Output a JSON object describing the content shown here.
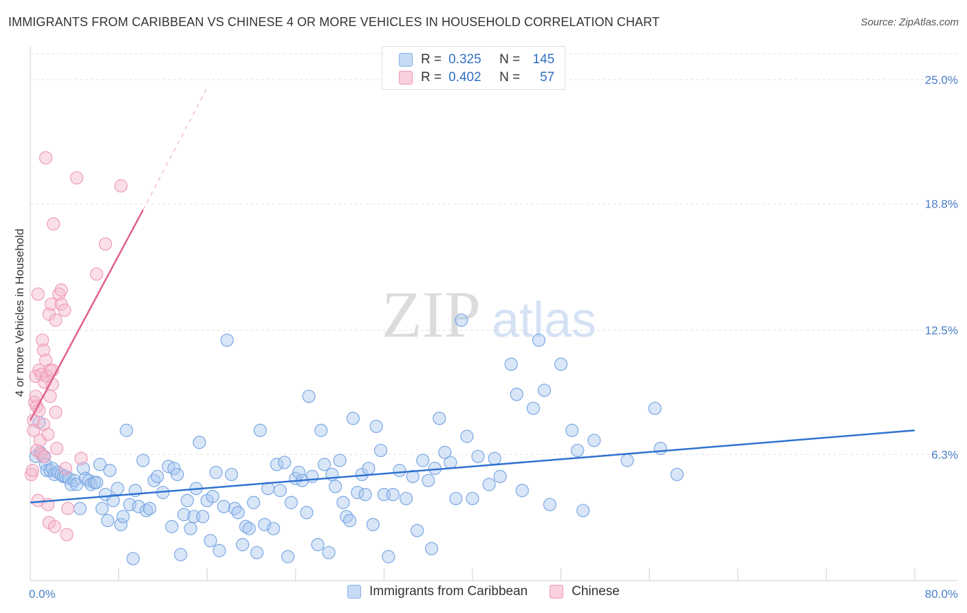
{
  "header": {
    "title": "IMMIGRANTS FROM CARIBBEAN VS CHINESE 4 OR MORE VEHICLES IN HOUSEHOLD CORRELATION CHART",
    "source": "Source: ZipAtlas.com"
  },
  "watermark": {
    "zip": "ZIP",
    "atlas": "atlas"
  },
  "legend": {
    "r_label": "R =",
    "n_label": "N =",
    "items": [
      {
        "r": "0.325",
        "n": "145",
        "color": "#a9c8f0"
      },
      {
        "r": "0.402",
        "n": "57",
        "color": "#f5b8cb"
      }
    ]
  },
  "chart_data": {
    "type": "scatter",
    "xlabel": "",
    "ylabel": "4 or more Vehicles in Household",
    "x_range": [
      0,
      80
    ],
    "y_range": [
      0,
      26.3
    ],
    "x_ticks": [
      "0.0%",
      "80.0%"
    ],
    "y_ticks": [
      {
        "value": 6.3,
        "label": "6.3%"
      },
      {
        "value": 12.5,
        "label": "12.5%"
      },
      {
        "value": 18.8,
        "label": "18.8%"
      },
      {
        "value": 25.0,
        "label": "25.0%"
      }
    ],
    "grid": "horizontal dashed",
    "series": [
      {
        "name": "Immigrants from Caribbean",
        "color": "#6fa0e0",
        "line_color": "#2f72d0",
        "trend": {
          "x0": 0,
          "y0": 3.9,
          "x1": 80,
          "y1": 7.5
        },
        "points": [
          [
            0.5,
            6.2
          ],
          [
            0.8,
            7.9
          ],
          [
            0.9,
            6.4
          ],
          [
            1.2,
            6.2
          ],
          [
            1.4,
            5.8
          ],
          [
            1.5,
            5.5
          ],
          [
            1.8,
            5.5
          ],
          [
            2.0,
            5.6
          ],
          [
            2.2,
            5.3
          ],
          [
            2.5,
            5.4
          ],
          [
            2.8,
            5.3
          ],
          [
            3.0,
            5.2
          ],
          [
            3.2,
            5.2
          ],
          [
            3.5,
            5.1
          ],
          [
            3.7,
            4.8
          ],
          [
            4.0,
            5.0
          ],
          [
            4.2,
            4.8
          ],
          [
            4.5,
            3.6
          ],
          [
            4.8,
            5.6
          ],
          [
            5.0,
            5.1
          ],
          [
            5.3,
            5.0
          ],
          [
            5.5,
            4.8
          ],
          [
            5.8,
            4.9
          ],
          [
            6.0,
            4.9
          ],
          [
            6.3,
            5.8
          ],
          [
            6.5,
            3.6
          ],
          [
            6.8,
            4.3
          ],
          [
            7.0,
            3.0
          ],
          [
            7.2,
            5.5
          ],
          [
            7.5,
            4.0
          ],
          [
            7.9,
            4.6
          ],
          [
            8.2,
            2.8
          ],
          [
            8.4,
            3.2
          ],
          [
            8.7,
            7.5
          ],
          [
            9.0,
            3.8
          ],
          [
            9.3,
            1.1
          ],
          [
            9.5,
            4.5
          ],
          [
            9.8,
            3.7
          ],
          [
            10.2,
            6.0
          ],
          [
            10.5,
            3.5
          ],
          [
            10.8,
            3.6
          ],
          [
            11.2,
            5.0
          ],
          [
            11.5,
            5.2
          ],
          [
            12.0,
            4.4
          ],
          [
            12.5,
            5.7
          ],
          [
            12.8,
            2.7
          ],
          [
            13.0,
            5.6
          ],
          [
            13.3,
            5.3
          ],
          [
            13.6,
            1.3
          ],
          [
            13.9,
            3.3
          ],
          [
            14.2,
            4.0
          ],
          [
            14.5,
            2.6
          ],
          [
            14.8,
            3.2
          ],
          [
            15.0,
            4.6
          ],
          [
            15.3,
            6.9
          ],
          [
            15.6,
            3.2
          ],
          [
            16.0,
            4.0
          ],
          [
            16.3,
            2.0
          ],
          [
            16.5,
            4.2
          ],
          [
            16.8,
            5.4
          ],
          [
            17.1,
            1.5
          ],
          [
            17.5,
            3.7
          ],
          [
            17.8,
            12.0
          ],
          [
            18.2,
            5.3
          ],
          [
            18.5,
            3.6
          ],
          [
            18.8,
            3.4
          ],
          [
            19.2,
            1.8
          ],
          [
            19.5,
            2.7
          ],
          [
            19.8,
            2.6
          ],
          [
            20.2,
            3.9
          ],
          [
            20.5,
            1.4
          ],
          [
            20.8,
            7.5
          ],
          [
            21.2,
            2.8
          ],
          [
            21.5,
            4.6
          ],
          [
            22.0,
            2.6
          ],
          [
            22.3,
            5.8
          ],
          [
            22.6,
            4.5
          ],
          [
            23.0,
            5.9
          ],
          [
            23.3,
            1.2
          ],
          [
            23.6,
            3.9
          ],
          [
            24.0,
            5.1
          ],
          [
            24.3,
            5.4
          ],
          [
            24.6,
            5.0
          ],
          [
            25.0,
            3.4
          ],
          [
            25.2,
            9.2
          ],
          [
            25.5,
            5.2
          ],
          [
            26.0,
            1.8
          ],
          [
            26.3,
            7.5
          ],
          [
            26.6,
            5.8
          ],
          [
            27.0,
            1.4
          ],
          [
            27.3,
            5.3
          ],
          [
            27.6,
            4.7
          ],
          [
            28.0,
            6.0
          ],
          [
            28.3,
            3.9
          ],
          [
            28.6,
            3.2
          ],
          [
            28.9,
            3.0
          ],
          [
            29.2,
            8.1
          ],
          [
            29.6,
            4.4
          ],
          [
            30.0,
            5.3
          ],
          [
            30.3,
            4.3
          ],
          [
            30.6,
            5.6
          ],
          [
            31.0,
            2.8
          ],
          [
            31.3,
            7.7
          ],
          [
            31.7,
            6.5
          ],
          [
            32.0,
            4.3
          ],
          [
            32.4,
            1.2
          ],
          [
            32.8,
            4.3
          ],
          [
            33.4,
            5.5
          ],
          [
            34.0,
            4.1
          ],
          [
            34.6,
            5.2
          ],
          [
            35.0,
            2.5
          ],
          [
            35.5,
            6.0
          ],
          [
            36.0,
            5.0
          ],
          [
            36.3,
            1.6
          ],
          [
            36.6,
            5.6
          ],
          [
            37.0,
            8.1
          ],
          [
            37.5,
            6.4
          ],
          [
            38.0,
            5.9
          ],
          [
            38.5,
            4.1
          ],
          [
            39.0,
            13.0
          ],
          [
            39.5,
            7.2
          ],
          [
            40.0,
            4.1
          ],
          [
            40.5,
            6.2
          ],
          [
            41.5,
            4.8
          ],
          [
            42.0,
            6.1
          ],
          [
            42.5,
            5.2
          ],
          [
            43.5,
            10.8
          ],
          [
            44.0,
            9.3
          ],
          [
            44.5,
            4.5
          ],
          [
            45.5,
            8.6
          ],
          [
            46.0,
            12.0
          ],
          [
            46.5,
            9.5
          ],
          [
            47.0,
            3.8
          ],
          [
            48.0,
            10.8
          ],
          [
            49.0,
            7.5
          ],
          [
            49.5,
            6.5
          ],
          [
            50.0,
            3.5
          ],
          [
            51.0,
            7.0
          ],
          [
            54.0,
            6.0
          ],
          [
            56.5,
            8.6
          ],
          [
            57.0,
            6.6
          ],
          [
            58.5,
            5.3
          ]
        ]
      },
      {
        "name": "Chinese",
        "color": "#f08fb0",
        "line_color": "#e0608c",
        "trend": {
          "x0": 0,
          "y0": 8.0,
          "x1": 10.2,
          "y1": 18.5,
          "x_ext": 16.0,
          "y_ext": 24.6
        },
        "points": [
          [
            0.1,
            5.3
          ],
          [
            0.2,
            5.5
          ],
          [
            0.3,
            8.0
          ],
          [
            0.3,
            7.5
          ],
          [
            0.4,
            8.9
          ],
          [
            0.5,
            9.2
          ],
          [
            0.5,
            10.2
          ],
          [
            0.6,
            8.7
          ],
          [
            0.6,
            6.5
          ],
          [
            0.7,
            4.0
          ],
          [
            0.7,
            14.3
          ],
          [
            0.8,
            10.5
          ],
          [
            0.8,
            8.5
          ],
          [
            0.9,
            7.0
          ],
          [
            1.0,
            6.3
          ],
          [
            1.0,
            10.3
          ],
          [
            1.1,
            12.0
          ],
          [
            1.2,
            7.8
          ],
          [
            1.2,
            11.5
          ],
          [
            1.3,
            9.9
          ],
          [
            1.3,
            6.2
          ],
          [
            1.4,
            11.0
          ],
          [
            1.4,
            21.1
          ],
          [
            1.5,
            10.2
          ],
          [
            1.6,
            7.3
          ],
          [
            1.6,
            3.8
          ],
          [
            1.7,
            2.9
          ],
          [
            1.7,
            13.3
          ],
          [
            1.8,
            10.5
          ],
          [
            1.8,
            9.2
          ],
          [
            1.9,
            13.8
          ],
          [
            2.0,
            9.8
          ],
          [
            2.0,
            10.5
          ],
          [
            2.1,
            17.8
          ],
          [
            2.2,
            2.7
          ],
          [
            2.3,
            13.0
          ],
          [
            2.3,
            8.4
          ],
          [
            2.4,
            6.6
          ],
          [
            2.6,
            14.3
          ],
          [
            2.8,
            13.8
          ],
          [
            2.8,
            14.5
          ],
          [
            3.1,
            13.5
          ],
          [
            3.2,
            5.6
          ],
          [
            3.3,
            2.3
          ],
          [
            3.4,
            3.6
          ],
          [
            4.2,
            20.1
          ],
          [
            4.6,
            6.1
          ],
          [
            6.0,
            15.3
          ],
          [
            6.8,
            16.8
          ],
          [
            8.2,
            19.7
          ]
        ]
      }
    ]
  }
}
